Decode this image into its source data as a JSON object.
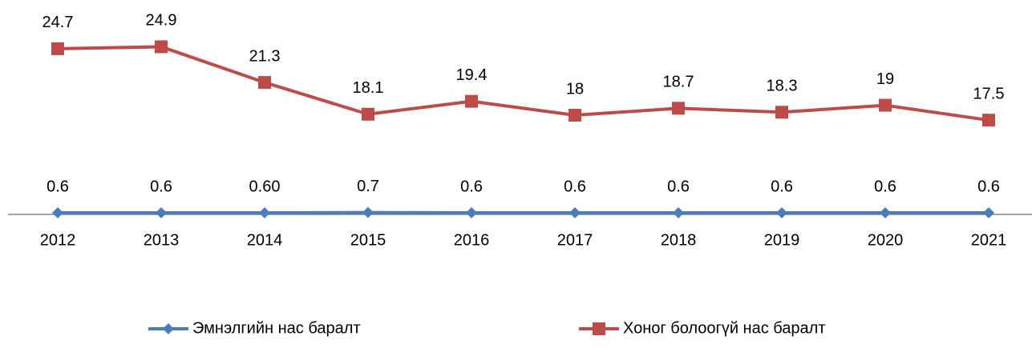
{
  "chart_data": {
    "type": "line",
    "categories": [
      "2012",
      "2013",
      "2014",
      "2015",
      "2016",
      "2017",
      "2018",
      "2019",
      "2020",
      "2021"
    ],
    "series": [
      {
        "name": "Эмнэлгийн нас баралт",
        "color": "#4a7ebb",
        "marker": "diamond",
        "values": [
          0.6,
          0.6,
          0.6,
          0.7,
          0.6,
          0.6,
          0.6,
          0.6,
          0.6,
          0.6
        ],
        "value_labels": [
          "0.6",
          "0.6",
          "0.60",
          "0.7",
          "0.6",
          "0.6",
          "0.6",
          "0.6",
          "0.6",
          "0.6"
        ]
      },
      {
        "name": "Хоног болоогүй нас баралт",
        "color": "#be4b48",
        "marker": "square",
        "axis": "y2",
        "values": [
          24.7,
          24.9,
          21.3,
          18.1,
          19.4,
          18.0,
          18.7,
          18.3,
          19.0,
          17.5
        ]
      }
    ],
    "ylim": [
      0,
      75
    ],
    "y2lim": [
      8,
      28
    ],
    "legend": "bottom"
  }
}
